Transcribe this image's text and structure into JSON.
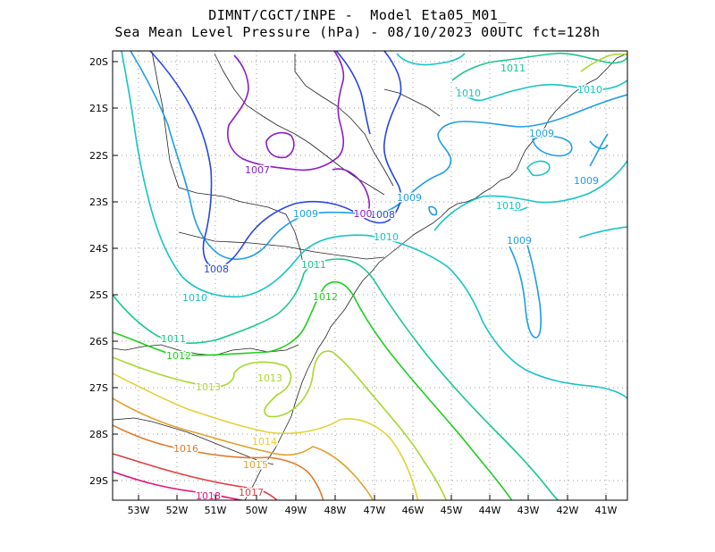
{
  "title_line1": "DIMNT/CGCT/INPE -  Model Eta05_M01_",
  "title_line2": "Sea Mean Level Pressure (hPa) - 08/10/2023 00UTC fct=128h",
  "chart_data": {
    "type": "contour-map",
    "variable": "Sea Mean Level Pressure",
    "units": "hPa",
    "lon_range": [
      -53.7,
      -40.5
    ],
    "lat_range": [
      -29.4,
      -19.8
    ],
    "x_ticks": [
      "53W",
      "52W",
      "51W",
      "50W",
      "49W",
      "48W",
      "47W",
      "46W",
      "45W",
      "44W",
      "43W",
      "42W",
      "41W"
    ],
    "y_ticks": [
      "20S",
      "21S",
      "22S",
      "23S",
      "24S",
      "25S",
      "26S",
      "27S",
      "28S",
      "29S"
    ],
    "isobar_levels": [
      {
        "level": "1007",
        "color": "#8b1cc9"
      },
      {
        "level": "1008",
        "color": "#2846e0"
      },
      {
        "level": "1009",
        "color": "#1e9ee6"
      },
      {
        "level": "1010",
        "color": "#16c4c4"
      },
      {
        "level": "1011",
        "color": "#18c88a"
      },
      {
        "level": "1012",
        "color": "#1ecf1e"
      },
      {
        "level": "1013",
        "color": "#a8d830"
      },
      {
        "level": "1014",
        "color": "#e2d232"
      },
      {
        "level": "1015",
        "color": "#e2a22a"
      },
      {
        "level": "1016",
        "color": "#e07a2a"
      },
      {
        "level": "1017",
        "color": "#e23c3c"
      },
      {
        "level": "1018",
        "color": "#e0147e"
      }
    ],
    "labels": [
      {
        "text": "1011",
        "color": "#18c88a"
      },
      {
        "text": "1010",
        "color": "#16c4c4"
      },
      {
        "text": "1010",
        "color": "#16c4c4"
      },
      {
        "text": "1009",
        "color": "#1e9ee6"
      },
      {
        "text": "1009",
        "color": "#1e9ee6"
      },
      {
        "text": "1007",
        "color": "#8b1cc9"
      },
      {
        "text": "1009",
        "color": "#1e9ee6"
      },
      {
        "text": "1009",
        "color": "#1e9ee6"
      },
      {
        "text": "1010",
        "color": "#16c4c4"
      },
      {
        "text": "1008",
        "color": "#2846e0"
      },
      {
        "text": "100",
        "color": "#8b1cc9"
      },
      {
        "text": "1010",
        "color": "#16c4c4"
      },
      {
        "text": "1009",
        "color": "#1e9ee6"
      },
      {
        "text": "1008",
        "color": "#2846e0"
      },
      {
        "text": "1011",
        "color": "#18c88a"
      },
      {
        "text": "1010",
        "color": "#16c4c4"
      },
      {
        "text": "1012",
        "color": "#1ecf1e"
      },
      {
        "text": "1011",
        "color": "#18c88a"
      },
      {
        "text": "1012",
        "color": "#1ecf1e"
      },
      {
        "text": "1013",
        "color": "#a8d830"
      },
      {
        "text": "1013",
        "color": "#a8d830"
      },
      {
        "text": "1014",
        "color": "#e2d232"
      },
      {
        "text": "1016",
        "color": "#e07a2a"
      },
      {
        "text": "1015",
        "color": "#e2a22a"
      },
      {
        "text": "1017",
        "color": "#e23c3c"
      },
      {
        "text": "1018",
        "color": "#e0147e"
      }
    ]
  }
}
